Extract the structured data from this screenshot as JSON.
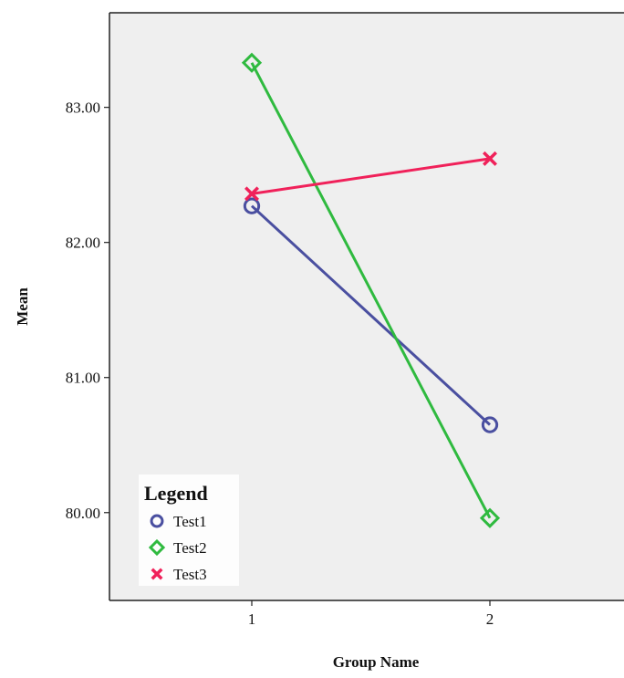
{
  "chart_data": {
    "type": "line",
    "title": "",
    "xlabel": "Group Name",
    "ylabel": "Mean",
    "categories": [
      "1",
      "2"
    ],
    "x_tick_labels": [
      "1",
      "2"
    ],
    "y_tick_labels": [
      "80.00",
      "81.00",
      "82.00",
      "83.00"
    ],
    "y_ticks": [
      80,
      81,
      82,
      83
    ],
    "ylim": [
      79.35,
      83.7
    ],
    "grid": false,
    "legend": {
      "title": "Legend",
      "placement": "bottom-left",
      "entries": [
        "Test1",
        "Test2",
        "Test3"
      ]
    },
    "series": [
      {
        "name": "Test1",
        "marker": "circle",
        "color": "#4a4fa0",
        "values": [
          82.27,
          80.65
        ]
      },
      {
        "name": "Test2",
        "marker": "diamond",
        "color": "#2fba3f",
        "values": [
          83.33,
          79.96
        ]
      },
      {
        "name": "Test3",
        "marker": "x",
        "color": "#f0215a",
        "values": [
          82.36,
          82.62
        ]
      }
    ]
  },
  "colors": {
    "plot_background": "#efefef",
    "axis": "#222222"
  }
}
